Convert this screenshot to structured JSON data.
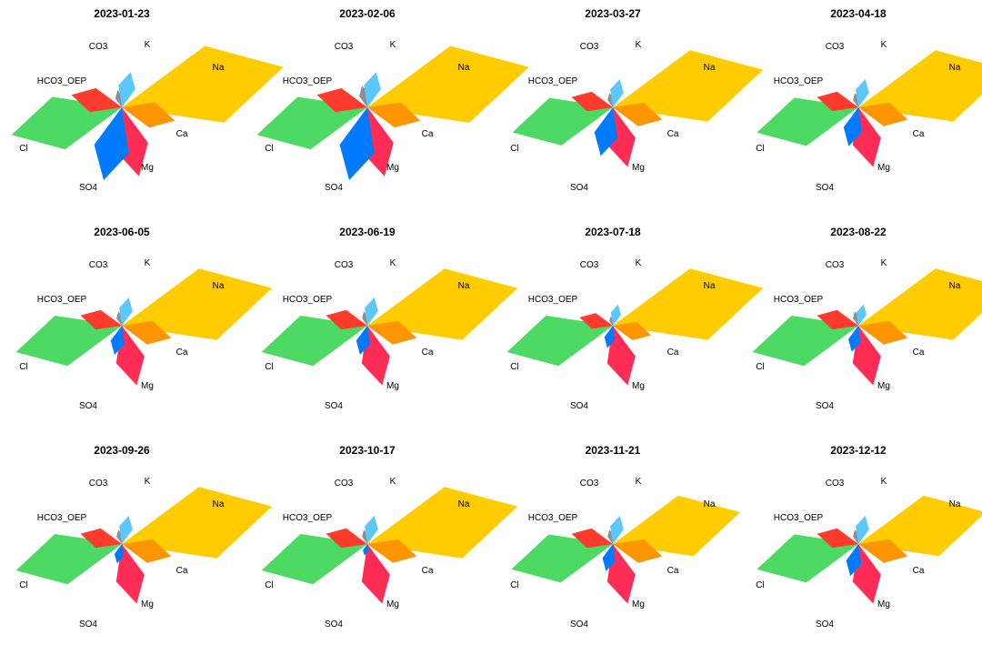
{
  "chart_data": {
    "type": "radar",
    "variables": [
      "Na",
      "Ca",
      "Mg",
      "SO4",
      "Cl",
      "HCO3_OEP",
      "CO3",
      "K"
    ],
    "colors": {
      "Na": "#FFCC00",
      "Ca": "#FF9500",
      "Mg": "#FF2D55",
      "SO4": "#007AFF",
      "Cl": "#4CD964",
      "HCO3_OEP": "#FF3B30",
      "CO3": "#8E8E93",
      "K": "#5AC8FA"
    },
    "panels": [
      {
        "title": "2023-01-23",
        "values": {
          "Na": 0.99,
          "Ca": 0.43,
          "Mg": 0.52,
          "SO4": 0.75,
          "Cl": 1.0,
          "HCO3_OEP": 0.44,
          "CO3": 0.28,
          "K": 0.5
        }
      },
      {
        "title": "2023-02-06",
        "values": {
          "Na": 0.99,
          "Ca": 0.43,
          "Mg": 0.52,
          "SO4": 0.75,
          "Cl": 1.0,
          "HCO3_OEP": 0.44,
          "CO3": 0.35,
          "K": 0.5
        }
      },
      {
        "title": "2023-03-27",
        "values": {
          "Na": 0.92,
          "Ca": 0.4,
          "Mg": 0.45,
          "SO4": 0.5,
          "Cl": 0.91,
          "HCO3_OEP": 0.36,
          "CO3": 0.23,
          "K": 0.4
        }
      },
      {
        "title": "2023-04-18",
        "values": {
          "Na": 0.92,
          "Ca": 0.4,
          "Mg": 0.45,
          "SO4": 0.4,
          "Cl": 0.92,
          "HCO3_OEP": 0.36,
          "CO3": 0.23,
          "K": 0.4
        }
      },
      {
        "title": "2023-06-05",
        "values": {
          "Na": 0.92,
          "Ca": 0.4,
          "Mg": 0.45,
          "SO4": 0.3,
          "Cl": 0.96,
          "HCO3_OEP": 0.36,
          "CO3": 0.23,
          "K": 0.4
        }
      },
      {
        "title": "2023-06-19",
        "values": {
          "Na": 0.92,
          "Ca": 0.4,
          "Mg": 0.45,
          "SO4": 0.3,
          "Cl": 0.96,
          "HCO3_OEP": 0.36,
          "CO3": 0.23,
          "K": 0.4
        }
      },
      {
        "title": "2023-07-18",
        "values": {
          "Na": 0.92,
          "Ca": 0.31,
          "Mg": 0.45,
          "SO4": 0.23,
          "Cl": 0.96,
          "HCO3_OEP": 0.29,
          "CO3": 0.15,
          "K": 0.3
        }
      },
      {
        "title": "2023-08-22",
        "values": {
          "Na": 0.92,
          "Ca": 0.4,
          "Mg": 0.45,
          "SO4": 0.27,
          "Cl": 0.96,
          "HCO3_OEP": 0.36,
          "CO3": 0.23,
          "K": 0.3
        }
      },
      {
        "title": "2023-09-26",
        "values": {
          "Na": 0.92,
          "Ca": 0.4,
          "Mg": 0.45,
          "SO4": 0.2,
          "Cl": 0.96,
          "HCO3_OEP": 0.36,
          "CO3": 0.23,
          "K": 0.4
        }
      },
      {
        "title": "2023-10-17",
        "values": {
          "Na": 0.92,
          "Ca": 0.4,
          "Mg": 0.45,
          "SO4": 0.12,
          "Cl": 0.96,
          "HCO3_OEP": 0.36,
          "CO3": 0.23,
          "K": 0.4
        }
      },
      {
        "title": "2023-11-21",
        "values": {
          "Na": 0.78,
          "Ca": 0.4,
          "Mg": 0.45,
          "SO4": 0.28,
          "Cl": 0.92,
          "HCO3_OEP": 0.36,
          "CO3": 0.23,
          "K": 0.4
        }
      },
      {
        "title": "2023-12-12",
        "values": {
          "Na": 0.78,
          "Ca": 0.4,
          "Mg": 0.45,
          "SO4": 0.33,
          "Cl": 0.92,
          "HCO3_OEP": 0.36,
          "CO3": 0.23,
          "K": 0.4
        }
      }
    ]
  }
}
